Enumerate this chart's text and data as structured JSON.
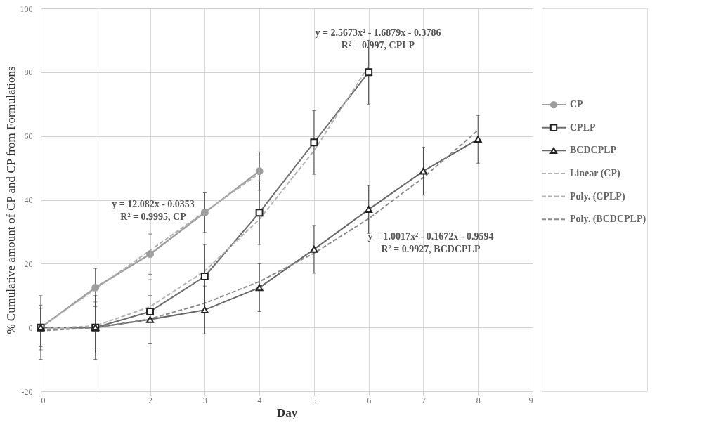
{
  "chart_data": {
    "type": "line",
    "xlabel": "Day",
    "ylabel": "% Cumulative amount of CP and CP from Formulations",
    "xlim": [
      0,
      9
    ],
    "xticks": [
      0,
      {
        "value": 1,
        "label": null
      },
      2,
      3,
      4,
      5,
      6,
      7,
      8,
      9
    ],
    "ylim": [
      -20,
      100
    ],
    "yticks": [
      -20,
      0,
      20,
      40,
      60,
      80,
      100
    ],
    "grid": true,
    "legend": "right",
    "series": [
      {
        "name": "CP",
        "color": "#9e9e9e",
        "marker": "circle",
        "x": [
          0,
          1,
          2,
          3,
          4
        ],
        "values": [
          0,
          12.5,
          23,
          36,
          49
        ],
        "errors": [
          10,
          6,
          6.3,
          6.2,
          6
        ]
      },
      {
        "name": "CPLP",
        "color": "#6e6e6e",
        "marker": "square",
        "x": [
          0,
          1,
          2,
          3,
          4,
          5,
          6
        ],
        "values": [
          0,
          0,
          5,
          16,
          36,
          58,
          80
        ],
        "errors": [
          7,
          10,
          10,
          10,
          10,
          10,
          10
        ]
      },
      {
        "name": "BCDCPLP",
        "color": "#666666",
        "marker": "triangle",
        "x": [
          0,
          1,
          2,
          3,
          4,
          5,
          6,
          7,
          8
        ],
        "values": [
          0,
          0,
          2.5,
          5.5,
          12.5,
          24.5,
          37,
          49,
          59
        ],
        "errors": [
          6,
          8,
          7.5,
          7.5,
          7.5,
          7.5,
          7.5,
          7.5,
          7.5
        ]
      },
      {
        "name": "Linear (CP)",
        "color": "#b0b0b0",
        "line_style": "dashed",
        "marker": "none",
        "x": [
          0,
          4
        ],
        "values": [
          0.0,
          48.3
        ]
      },
      {
        "name": "Poly.  (CPLP)",
        "color": "#b4b4b4",
        "line_style": "dashed",
        "marker": "none",
        "x": [
          0,
          1,
          2,
          3,
          4,
          5,
          6
        ],
        "values": [
          -0.4,
          0.5,
          6.5,
          17.7,
          33.9,
          55.4,
          81.9
        ]
      },
      {
        "name": "Poly.  (BCDCPLP)",
        "color": "#8c8c8c",
        "line_style": "dashed",
        "marker": "none",
        "x": [
          0,
          1,
          2,
          3,
          4,
          5,
          6,
          7,
          8
        ],
        "values": [
          -1.0,
          -0.1,
          2.7,
          7.6,
          14.4,
          23.3,
          34.1,
          47.0,
          61.8
        ]
      }
    ],
    "annotations": [
      "y = 12.082x - 0.0353",
      "R² = 0.9995, CP",
      "y = 2.5673x² - 1.6879x - 0.3786",
      "R² = 0.997, CPLP",
      "y = 1.0017x² - 0.1672x - 0.9594",
      "R² = 0.9927, BCDCPLP"
    ]
  }
}
